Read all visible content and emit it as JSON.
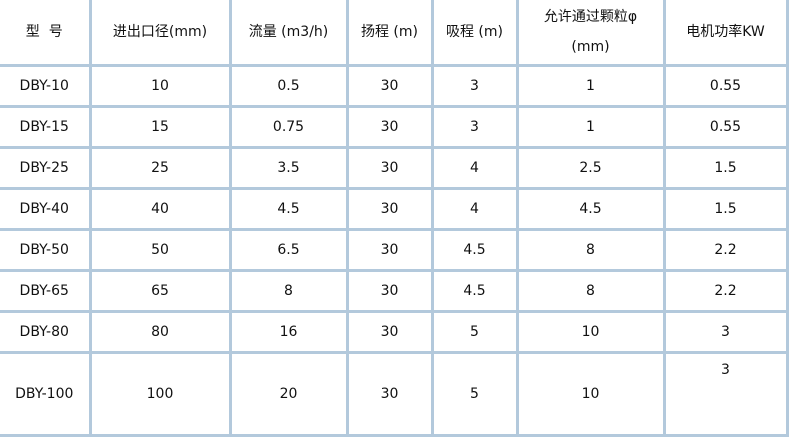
{
  "headers": [
    "型  号",
    "进出口径(mm)",
    "流量 (m3/h)",
    "扬程 (m)",
    "吸程 (m)",
    "允许通过颗粒φ (mm)",
    "电机功率KW"
  ],
  "rows": [
    [
      "DBY-10",
      "10",
      "0.5",
      "30",
      "3",
      "1",
      "0.55"
    ],
    [
      "DBY-15",
      "15",
      "0.75",
      "30",
      "3",
      "1",
      "0.55"
    ],
    [
      "DBY-25",
      "25",
      "3.5",
      "30",
      "4",
      "2.5",
      "1.5"
    ],
    [
      "DBY-40",
      "40",
      "4.5",
      "30",
      "4",
      "4.5",
      "1.5"
    ],
    [
      "DBY-50",
      "50",
      "6.5",
      "30",
      "4.5",
      "8",
      "2.2"
    ],
    [
      "DBY-65",
      "65",
      "8",
      "30",
      "4.5",
      "8",
      "2.2"
    ],
    [
      "DBY-80",
      "80",
      "16",
      "30",
      "5",
      "10",
      "3"
    ],
    [
      "DBY-100",
      "100",
      "20",
      "30",
      "5",
      "10",
      "3"
    ]
  ],
  "border_color": "#b3c9dc"
}
